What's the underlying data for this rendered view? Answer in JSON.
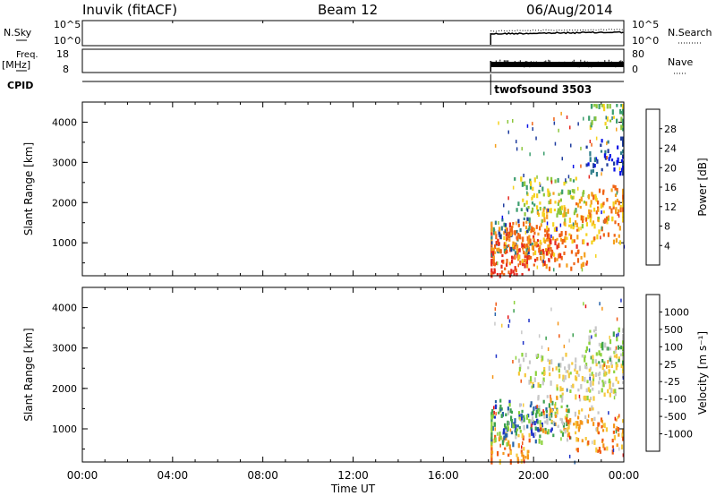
{
  "header": {
    "station": "Inuvik (fitACF)",
    "beam": "Beam 12",
    "date": "06/Aug/2014"
  },
  "strips": {
    "nsky_label": "N.Sky",
    "nsky_ticks": [
      "10^5",
      "10^0"
    ],
    "nsearch_ticks": [
      "10^5",
      "10^0"
    ],
    "nsearch_label": "N.Search",
    "freq_label": "Freq.",
    "freq_unit": "[MHz]",
    "freq_ticks": [
      "18",
      "8"
    ],
    "nave_ticks": [
      "80",
      "0"
    ],
    "nave_label": "Nave",
    "cpid_label": "CPID",
    "cpid_value": "twofsound 3503"
  },
  "colors": {
    "power": [
      "#0a14e6",
      "#1e3c9e",
      "#2e7d8a",
      "#3c9e6e",
      "#8cc63c",
      "#f5d21e",
      "#f5a01e",
      "#f06414",
      "#e6281e"
    ],
    "velocity": [
      "#e61414",
      "#f05a14",
      "#f59619",
      "#f5c83c",
      "#c8c8c8",
      "#8cd23c",
      "#3ca050",
      "#2864aa",
      "#1e32c8"
    ]
  },
  "chart_data": [
    {
      "type": "heatmap",
      "panel": "power",
      "ylabel": "Slant Range [km]",
      "yticks": [
        1000,
        2000,
        3000,
        4000
      ],
      "ylim": [
        180,
        4500
      ],
      "xlim_hours": [
        0,
        24
      ],
      "colorbar_label": "Power [dB]",
      "colorbar_ticks": [
        "28",
        "24",
        "20",
        "16",
        "12",
        "8",
        "4"
      ],
      "data_start_hour": 18.1,
      "approx_cells": [
        {
          "t": 18.3,
          "r": 500,
          "level": 8
        },
        {
          "t": 18.6,
          "r": 1200,
          "level": 2
        },
        {
          "t": 19.0,
          "r": 1100,
          "level": 7
        },
        {
          "t": 19.5,
          "r": 900,
          "level": 7
        },
        {
          "t": 20.0,
          "r": 1000,
          "level": 6
        },
        {
          "t": 20.5,
          "r": 2200,
          "level": 4
        },
        {
          "t": 21.0,
          "r": 800,
          "level": 7
        },
        {
          "t": 21.5,
          "r": 1900,
          "level": 5
        },
        {
          "t": 22.5,
          "r": 1500,
          "level": 6
        },
        {
          "t": 23.2,
          "r": 2000,
          "level": 6
        },
        {
          "t": 23.6,
          "r": 3200,
          "level": 1
        },
        {
          "t": 23.8,
          "r": 4300,
          "level": 4
        }
      ]
    },
    {
      "type": "heatmap",
      "panel": "velocity",
      "ylabel": "Slant Range [km]",
      "yticks": [
        1000,
        2000,
        3000,
        4000
      ],
      "ylim": [
        180,
        4500
      ],
      "xlim_hours": [
        0,
        24
      ],
      "colorbar_label": "Velocity [m s⁻¹]",
      "colorbar_ticks": [
        "1000",
        "500",
        "100",
        "25",
        "-25",
        "-100",
        "-500",
        "-1000"
      ],
      "data_start_hour": 18.1,
      "approx_cells": [
        {
          "t": 18.4,
          "r": 500,
          "level": 2
        },
        {
          "t": 19.0,
          "r": 1100,
          "level": 6
        },
        {
          "t": 19.6,
          "r": 1300,
          "level": 7
        },
        {
          "t": 20.2,
          "r": 1200,
          "level": 5
        },
        {
          "t": 20.6,
          "r": 2500,
          "level": 4
        },
        {
          "t": 21.5,
          "r": 1400,
          "level": 3
        },
        {
          "t": 22.3,
          "r": 2200,
          "level": 4
        },
        {
          "t": 22.8,
          "r": 900,
          "level": 2
        },
        {
          "t": 23.5,
          "r": 2600,
          "level": 4
        },
        {
          "t": 23.8,
          "r": 3100,
          "level": 5
        }
      ]
    }
  ],
  "xaxis": {
    "ticks": [
      "00:00",
      "04:00",
      "08:00",
      "12:00",
      "16:00",
      "20:00",
      "00:00"
    ],
    "label": "Time UT"
  }
}
